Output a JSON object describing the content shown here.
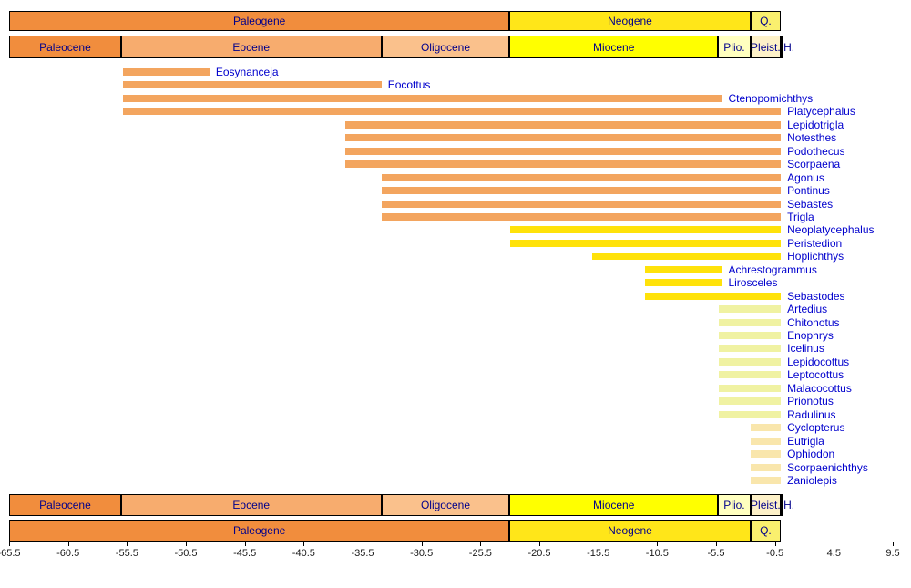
{
  "chart_data": {
    "type": "bar",
    "subtype": "horizontal-taxon-range-chart-on-geologic-timescale",
    "title": "",
    "axis": {
      "min": -65.5,
      "max": 9.5,
      "ticks": [
        -65.5,
        -60.5,
        -55.5,
        -50.5,
        -45.5,
        -40.5,
        -35.5,
        -30.5,
        -25.5,
        -20.5,
        -15.5,
        -10.5,
        -5.5,
        -0.5,
        4.5,
        9.5
      ]
    },
    "timescale": {
      "periods": [
        {
          "name": "Paleogene",
          "start": -66,
          "end": -23.03,
          "color": "#F18D3D"
        },
        {
          "name": "Neogene",
          "start": -23.03,
          "end": -2.58,
          "color": "#FFE619"
        },
        {
          "name": "Q.",
          "start": -2.58,
          "end": 0,
          "color": "#FAF06E"
        }
      ],
      "epochs": [
        {
          "name": "Paleocene",
          "start": -66,
          "end": -56,
          "color": "#F18D3D"
        },
        {
          "name": "Eocene",
          "start": -56,
          "end": -33.9,
          "color": "#F7AC6E"
        },
        {
          "name": "Oligocene",
          "start": -33.9,
          "end": -23.03,
          "color": "#FAC18C"
        },
        {
          "name": "Miocene",
          "start": -23.03,
          "end": -5.33,
          "color": "#FFFF00"
        },
        {
          "name": "Plio.",
          "start": -5.33,
          "end": -2.58,
          "color": "#FFFFBF"
        },
        {
          "name": "Pleist.",
          "start": -2.58,
          "end": -0.01,
          "color": "#FDF1C8"
        },
        {
          "name": "H.",
          "start": -0.01,
          "end": 0,
          "color": "#FFFFFF",
          "label_outside": true
        }
      ]
    },
    "series": [
      {
        "name": "Eosynanceja",
        "start": -55.8,
        "end": -48.5,
        "color": "#F3A55F"
      },
      {
        "name": "Eocottus",
        "start": -55.8,
        "end": -33.9,
        "color": "#F3A55F"
      },
      {
        "name": "Ctenopomichthys",
        "start": -55.8,
        "end": -5.0,
        "color": "#F3A55F"
      },
      {
        "name": "Platycephalus",
        "start": -55.8,
        "end": 0,
        "color": "#F3A55F"
      },
      {
        "name": "Lepidotrigla",
        "start": -37.0,
        "end": 0,
        "color": "#F3A55F"
      },
      {
        "name": "Notesthes",
        "start": -37.0,
        "end": 0,
        "color": "#F3A55F"
      },
      {
        "name": "Podothecus",
        "start": -37.0,
        "end": 0,
        "color": "#F3A55F"
      },
      {
        "name": "Scorpaena",
        "start": -37.0,
        "end": 0,
        "color": "#F3A55F"
      },
      {
        "name": "Agonus",
        "start": -33.9,
        "end": 0,
        "color": "#F3A55F"
      },
      {
        "name": "Pontinus",
        "start": -33.9,
        "end": 0,
        "color": "#F3A55F"
      },
      {
        "name": "Sebastes",
        "start": -33.9,
        "end": 0,
        "color": "#F3A55F"
      },
      {
        "name": "Trigla",
        "start": -33.9,
        "end": 0,
        "color": "#F3A55F"
      },
      {
        "name": "Neoplatycephalus",
        "start": -23.0,
        "end": 0,
        "color": "#FFE20A"
      },
      {
        "name": "Peristedion",
        "start": -23.0,
        "end": 0,
        "color": "#FFE20A"
      },
      {
        "name": "Hoplichthys",
        "start": -16.0,
        "end": 0,
        "color": "#FFE20A"
      },
      {
        "name": "Achrestogrammus",
        "start": -11.5,
        "end": -5.0,
        "color": "#FFE20A"
      },
      {
        "name": "Lirosceles",
        "start": -11.5,
        "end": -5.0,
        "color": "#FFE20A"
      },
      {
        "name": "Sebastodes",
        "start": -11.5,
        "end": 0,
        "color": "#FFE20A"
      },
      {
        "name": "Artedius",
        "start": -5.3,
        "end": 0,
        "color": "#F0F2A2"
      },
      {
        "name": "Chitonotus",
        "start": -5.3,
        "end": 0,
        "color": "#F0F2A2"
      },
      {
        "name": "Enophrys",
        "start": -5.3,
        "end": 0,
        "color": "#F0F2A2"
      },
      {
        "name": "Icelinus",
        "start": -5.3,
        "end": 0,
        "color": "#F0F2A2"
      },
      {
        "name": "Lepidocottus",
        "start": -5.3,
        "end": 0,
        "color": "#F0F2A2"
      },
      {
        "name": "Leptocottus",
        "start": -5.3,
        "end": 0,
        "color": "#F0F2A2"
      },
      {
        "name": "Malacocottus",
        "start": -5.3,
        "end": 0,
        "color": "#F0F2A2"
      },
      {
        "name": "Prionotus",
        "start": -5.3,
        "end": 0,
        "color": "#F0F2A2"
      },
      {
        "name": "Radulinus",
        "start": -5.3,
        "end": 0,
        "color": "#F0F2A2"
      },
      {
        "name": "Cyclopterus",
        "start": -2.58,
        "end": 0,
        "color": "#F9E6AC"
      },
      {
        "name": "Eutrigla",
        "start": -2.58,
        "end": 0,
        "color": "#F9E6AC"
      },
      {
        "name": "Ophiodon",
        "start": -2.58,
        "end": 0,
        "color": "#F9E6AC"
      },
      {
        "name": "Scorpaenichthys",
        "start": -2.58,
        "end": 0,
        "color": "#F9E6AC"
      },
      {
        "name": "Zaniolepis",
        "start": -2.58,
        "end": 0,
        "color": "#F9E6AC"
      }
    ],
    "layout_notes": {
      "legend": "none",
      "grid": "off",
      "timescale_rows": "periods and epochs drawn above and mirrored below the range bars",
      "bars_end_clipped_at": 0
    },
    "text_colors": {
      "scale_label": "#00008B",
      "taxon_label": "#0000CD",
      "axis_label": "#1A1A1A"
    }
  }
}
